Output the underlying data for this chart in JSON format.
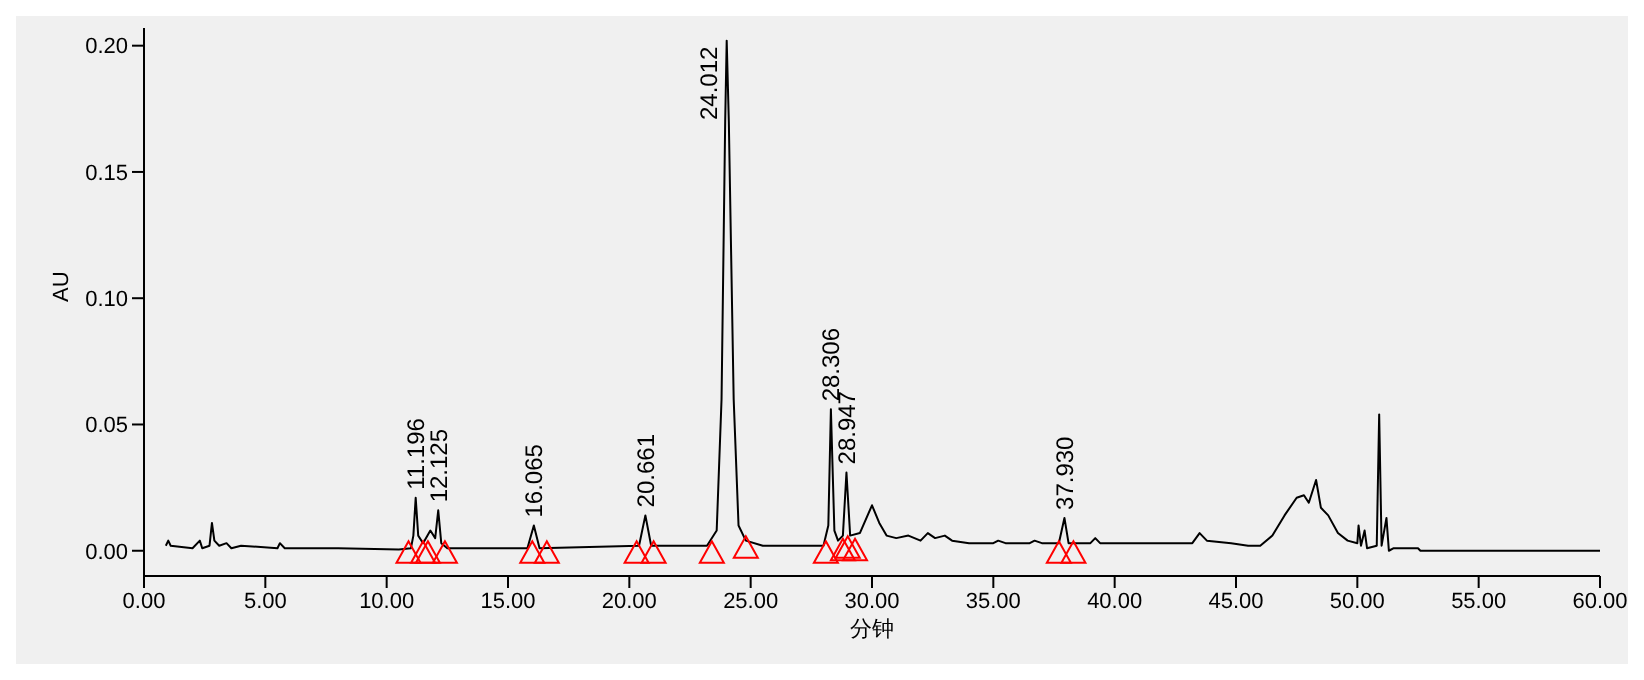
{
  "chart_data": {
    "type": "line",
    "xlabel": "分钟",
    "ylabel": "AU",
    "xlim": [
      0,
      60
    ],
    "ylim": [
      -0.01,
      0.207
    ],
    "xticks": [
      {
        "value": 0,
        "label": "0.00"
      },
      {
        "value": 5,
        "label": "5.00"
      },
      {
        "value": 10,
        "label": "10.00"
      },
      {
        "value": 15,
        "label": "15.00"
      },
      {
        "value": 20,
        "label": "20.00"
      },
      {
        "value": 25,
        "label": "25.00"
      },
      {
        "value": 30,
        "label": "30.00"
      },
      {
        "value": 35,
        "label": "35.00"
      },
      {
        "value": 40,
        "label": "40.00"
      },
      {
        "value": 45,
        "label": "45.00"
      },
      {
        "value": 50,
        "label": "50.00"
      },
      {
        "value": 55,
        "label": "55.00"
      },
      {
        "value": 60,
        "label": "60.00"
      }
    ],
    "yticks": [
      {
        "value": 0,
        "label": "0.00"
      },
      {
        "value": 0.05,
        "label": "0.05"
      },
      {
        "value": 0.1,
        "label": "0.10"
      },
      {
        "value": 0.15,
        "label": "0.15"
      },
      {
        "value": 0.2,
        "label": "0.20"
      }
    ],
    "grid": false,
    "series": [
      {
        "color": "#000000",
        "marker": "none",
        "x": [
          0.9,
          1.0,
          1.1,
          2.0,
          2.3,
          2.4,
          2.7,
          2.8,
          2.9,
          3.1,
          3.4,
          3.6,
          4.0,
          5.5,
          5.6,
          5.8,
          8.0,
          10.5,
          11.0,
          11.1,
          11.196,
          11.3,
          11.5,
          11.8,
          12.0,
          12.125,
          12.25,
          12.5,
          15.8,
          16.065,
          16.3,
          20.4,
          20.661,
          20.9,
          23.2,
          23.6,
          23.8,
          23.95,
          24.012,
          24.1,
          24.3,
          24.5,
          24.8,
          25.5,
          28.0,
          28.2,
          28.306,
          28.45,
          28.6,
          28.8,
          28.947,
          29.1,
          29.5,
          30.0,
          30.3,
          30.6,
          31.0,
          31.5,
          32.0,
          32.3,
          32.6,
          33.0,
          33.3,
          34.0,
          35.0,
          35.2,
          35.5,
          36.5,
          36.7,
          37.0,
          37.7,
          37.93,
          38.1,
          39.0,
          39.2,
          39.4,
          43.2,
          43.5,
          43.8,
          44.8,
          45.5,
          46.0,
          46.5,
          47.0,
          47.5,
          47.8,
          48.0,
          48.3,
          48.5,
          48.8,
          49.2,
          49.6,
          50.0,
          50.05,
          50.15,
          50.3,
          50.4,
          50.8,
          50.9,
          51.0,
          51.2,
          51.3,
          51.5,
          52.5,
          52.6,
          60.0
        ],
        "values": [
          0.002,
          0.004,
          0.002,
          0.001,
          0.004,
          0.001,
          0.002,
          0.011,
          0.004,
          0.002,
          0.003,
          0.001,
          0.002,
          0.001,
          0.003,
          0.001,
          0.001,
          0.0005,
          0.001,
          0.006,
          0.021,
          0.006,
          0.003,
          0.008,
          0.005,
          0.016,
          0.003,
          0.001,
          0.001,
          0.01,
          0.001,
          0.002,
          0.014,
          0.002,
          0.002,
          0.008,
          0.06,
          0.17,
          0.202,
          0.17,
          0.06,
          0.01,
          0.004,
          0.002,
          0.002,
          0.01,
          0.056,
          0.008,
          0.004,
          0.006,
          0.031,
          0.006,
          0.007,
          0.018,
          0.011,
          0.006,
          0.005,
          0.006,
          0.004,
          0.007,
          0.005,
          0.006,
          0.004,
          0.003,
          0.003,
          0.004,
          0.003,
          0.003,
          0.004,
          0.003,
          0.003,
          0.013,
          0.003,
          0.003,
          0.005,
          0.003,
          0.003,
          0.007,
          0.004,
          0.003,
          0.002,
          0.002,
          0.006,
          0.014,
          0.021,
          0.022,
          0.019,
          0.028,
          0.017,
          0.014,
          0.007,
          0.004,
          0.003,
          0.01,
          0.002,
          0.008,
          0.001,
          0.002,
          0.054,
          0.002,
          0.013,
          0.0,
          0.001,
          0.001,
          0.0,
          0.0
        ]
      },
      {
        "type": "scatter",
        "color": "#ff0000",
        "marker": "triangle",
        "x": [
          10.9,
          11.5,
          11.7,
          12.4,
          16.0,
          16.6,
          20.3,
          21.0,
          23.4,
          24.8,
          28.1,
          28.8,
          29.0,
          29.3,
          37.7,
          38.3
        ],
        "values": [
          -0.001,
          -0.001,
          -0.001,
          -0.001,
          -0.001,
          -0.001,
          -0.001,
          -0.001,
          -0.001,
          0.001,
          -0.001,
          0.0,
          0.001,
          0.0,
          -0.001,
          -0.001
        ]
      }
    ],
    "annotations": [
      {
        "text": "11.196",
        "x": 11.196,
        "y": 0.021
      },
      {
        "text": "12.125",
        "x": 12.125,
        "y": 0.016
      },
      {
        "text": "16.065",
        "x": 16.065,
        "y": 0.01
      },
      {
        "text": "20.661",
        "x": 20.661,
        "y": 0.014
      },
      {
        "text": "24.012",
        "x": 24.012,
        "y": 0.202
      },
      {
        "text": "28.306",
        "x": 28.306,
        "y": 0.056
      },
      {
        "text": "28.947",
        "x": 28.947,
        "y": 0.031
      },
      {
        "text": "37.930",
        "x": 37.93,
        "y": 0.013
      }
    ]
  }
}
